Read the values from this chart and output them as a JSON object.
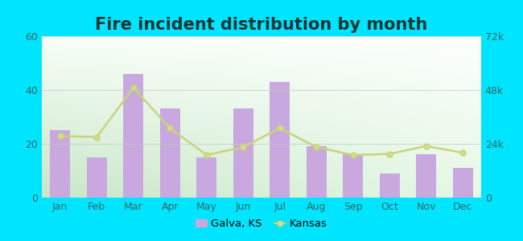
{
  "title": "Fire incident distribution by month",
  "months": [
    "Jan",
    "Feb",
    "Mar",
    "Apr",
    "May",
    "Jun",
    "Jul",
    "Aug",
    "Sep",
    "Oct",
    "Nov",
    "Dec"
  ],
  "galva_values": [
    25,
    15,
    46,
    33,
    15,
    33,
    43,
    19,
    16,
    9,
    16,
    11
  ],
  "kansas_values": [
    27500,
    27000,
    49000,
    31000,
    19000,
    22500,
    31000,
    22500,
    19000,
    19500,
    23000,
    20000
  ],
  "bar_color": "#c9a8e0",
  "line_color": "#c8d47a",
  "line_marker_color": "#d4dc8a",
  "outer_background": "#00e5ff",
  "left_ylim": [
    0,
    60
  ],
  "right_ylim": [
    0,
    72000
  ],
  "left_yticks": [
    0,
    20,
    40,
    60
  ],
  "right_yticks": [
    0,
    24000,
    48000,
    72000
  ],
  "right_yticklabels": [
    "0",
    "24k",
    "48k",
    "72k"
  ],
  "title_fontsize": 15,
  "tick_fontsize": 9,
  "legend_label_galva": "Galva, KS",
  "legend_label_kansas": "Kansas",
  "tick_color": "#336666",
  "title_color": "#1a3333"
}
